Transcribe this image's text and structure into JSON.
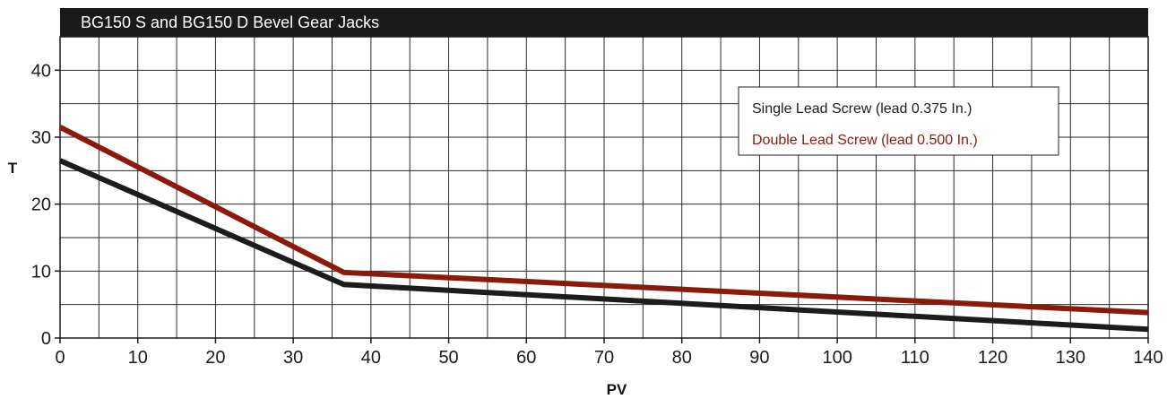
{
  "chart_data": {
    "type": "line",
    "title": "BG150 S and BG150 D Bevel Gear Jacks",
    "xlabel": "PV",
    "ylabel": "T",
    "xlim": [
      0,
      140
    ],
    "ylim": [
      0,
      45
    ],
    "xticks": [
      "0",
      "10",
      "20",
      "30",
      "40",
      "50",
      "60",
      "70",
      "80",
      "90",
      "100",
      "110",
      "120",
      "130",
      "140"
    ],
    "yticks": [
      "0",
      "10",
      "20",
      "30",
      "40"
    ],
    "grid": true,
    "legend_position": "top-right",
    "series": [
      {
        "name": "Single Lead Screw (lead 0.375 In.)",
        "color": "#1c1c1c",
        "x": [
          0,
          36.5,
          140
        ],
        "y": [
          26.5,
          8.0,
          1.3
        ]
      },
      {
        "name": "Double Lead Screw (lead 0.500 In.)",
        "color": "#8b1a0c",
        "x": [
          0,
          36.5,
          140
        ],
        "y": [
          31.5,
          9.8,
          3.8
        ]
      }
    ]
  }
}
